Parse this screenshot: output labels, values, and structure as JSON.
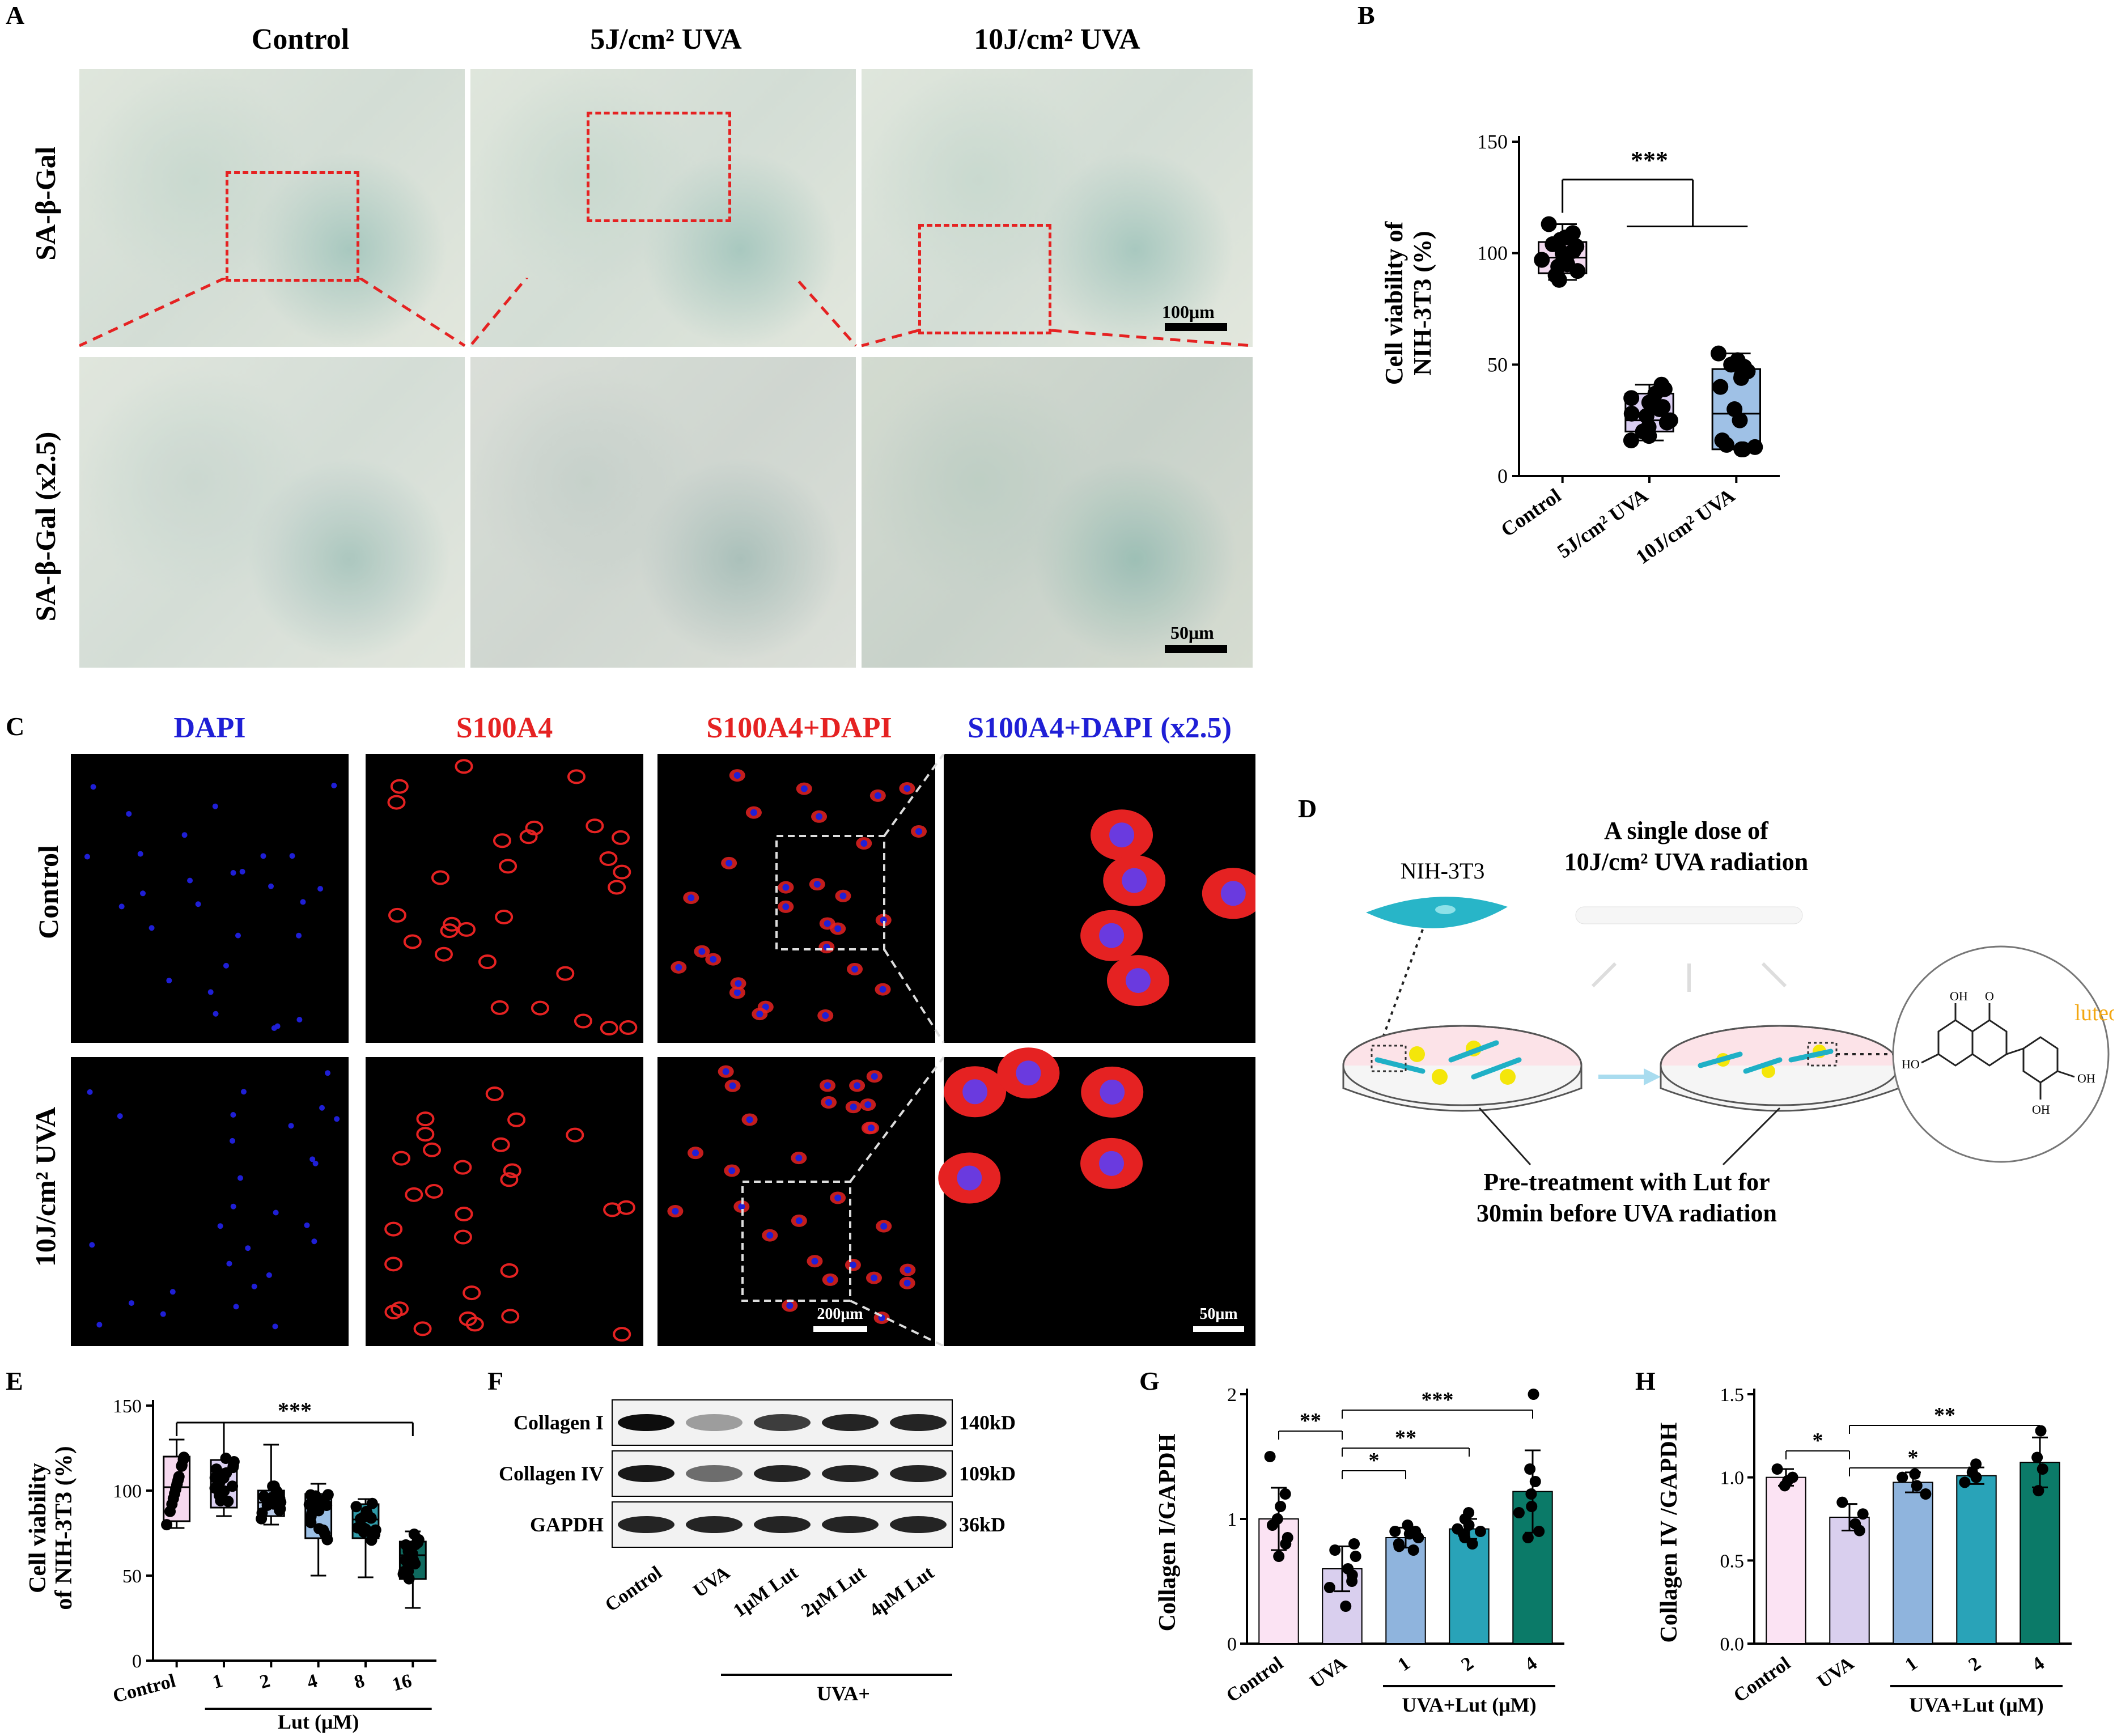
{
  "panel_labels": {
    "a": "A",
    "b": "B",
    "c": "C",
    "d": "D",
    "e": "E",
    "f": "F",
    "g": "G",
    "h": "H"
  },
  "panel_a": {
    "col_titles": [
      "Control",
      "5J/cm² UVA",
      "10J/cm² UVA"
    ],
    "row_labels": [
      "SA-β-Gal",
      "SA-β-Gal (x2.5)"
    ],
    "scale_top": "100μm",
    "scale_bottom": "50μm"
  },
  "panel_b": {
    "ylabel_line1": "Cell viability of",
    "ylabel_line2": "NIH-3T3 (%)",
    "significance": "***"
  },
  "panel_c": {
    "col_titles": [
      "DAPI",
      "S100A4",
      "S100A4+DAPI",
      "S100A4+DAPI (x2.5)"
    ],
    "row_labels": [
      "Control",
      "10J/cm² UVA"
    ],
    "scale_200": "200μm",
    "scale_50": "50μm",
    "colors": {
      "dapi": "#1f1fd6",
      "s100a4": "#e52222"
    }
  },
  "panel_d": {
    "cell_label": "NIH-3T3",
    "uva_line1": "A single dose of",
    "uva_line2": "10J/cm² UVA radiation",
    "compound": "luteolin",
    "pre_line1": "Pre-treatment with Lut for",
    "pre_line2": "30min before UVA radiation",
    "oh_labels": [
      "OH",
      "O",
      "HO",
      "OH",
      "OH"
    ]
  },
  "panel_e": {
    "ylabel_line1": "Cell viability",
    "ylabel_line2": "of NIH-3T3 (%)",
    "xlabel": "Lut (μM)",
    "significance": "***"
  },
  "panel_f": {
    "bands": [
      "Collagen I",
      "Collagen IV",
      "GAPDH"
    ],
    "sizes": [
      "140kD",
      "109kD",
      "36kD"
    ],
    "lanes": [
      "Control",
      "UVA",
      "1μM Lut",
      "2μM Lut",
      "4μM Lut"
    ],
    "group": "UVA+"
  },
  "panel_g": {
    "ylabel": "Collagen I/GAPDH",
    "xgroup": "UVA+Lut (μM)",
    "sig": [
      "**",
      "*",
      "**",
      "***"
    ]
  },
  "panel_h": {
    "ylabel": "Collagen IV /GAPDH",
    "xgroup": "UVA+Lut (μM)",
    "sig": [
      "*",
      "*",
      "**"
    ]
  },
  "chart_data": [
    {
      "id": "B",
      "type": "box",
      "categories": [
        "Control",
        "5J/cm² UVA",
        "10J/cm² UVA"
      ],
      "ylim": [
        0,
        150
      ],
      "yticks": [
        0,
        50,
        100,
        150
      ],
      "box_stats": [
        {
          "min": 88,
          "q1": 91,
          "median": 98,
          "q3": 105,
          "max": 113
        },
        {
          "min": 16,
          "q1": 20,
          "median": 25,
          "q3": 37,
          "max": 41
        },
        {
          "min": 12,
          "q1": 12,
          "median": 28,
          "q3": 48,
          "max": 55
        }
      ],
      "points": [
        [
          113,
          109,
          107,
          106,
          104,
          103,
          101,
          100,
          99,
          98,
          97,
          96,
          95,
          94,
          92,
          90,
          88
        ],
        [
          41,
          39,
          37,
          35,
          33,
          31,
          30,
          28,
          27,
          25,
          24,
          22,
          20,
          18,
          16
        ],
        [
          55,
          52,
          50,
          49,
          47,
          45,
          44,
          40,
          30,
          25,
          16,
          14,
          13,
          12,
          12
        ]
      ],
      "colors": [
        "#f2d9ef",
        "#d9cdf0",
        "#9fc1e6"
      ]
    },
    {
      "id": "E",
      "type": "box",
      "categories": [
        "Control",
        "1",
        "2",
        "4",
        "8",
        "16"
      ],
      "ylim": [
        0,
        150
      ],
      "yticks": [
        0,
        50,
        100,
        150
      ],
      "box_stats": [
        {
          "min": 78,
          "q1": 82,
          "median": 102,
          "q3": 120,
          "max": 130
        },
        {
          "min": 85,
          "q1": 90,
          "median": 102,
          "q3": 118,
          "max": 140
        },
        {
          "min": 80,
          "q1": 85,
          "median": 93,
          "q3": 100,
          "max": 127
        },
        {
          "min": 50,
          "q1": 72,
          "median": 90,
          "q3": 98,
          "max": 104
        },
        {
          "min": 49,
          "q1": 72,
          "median": 83,
          "q3": 92,
          "max": 95
        },
        {
          "min": 31,
          "q1": 48,
          "median": 62,
          "q3": 70,
          "max": 76
        }
      ],
      "colors": [
        "#f6d9ef",
        "#dcd1f2",
        "#b9cbe8",
        "#9bbfe5",
        "#2f9aa8",
        "#0f6a5f"
      ]
    },
    {
      "id": "G",
      "type": "bar",
      "ylabel": "Collagen I/GAPDH",
      "categories": [
        "Control",
        "UVA",
        "1",
        "2",
        "4"
      ],
      "values": [
        1.0,
        0.6,
        0.85,
        0.92,
        1.22
      ],
      "errors": [
        0.25,
        0.18,
        0.08,
        0.08,
        0.33
      ],
      "points": [
        [
          1.5,
          1.2,
          1.1,
          1.0,
          0.95,
          0.85,
          0.8,
          0.7
        ],
        [
          0.75,
          0.7,
          0.6,
          0.55,
          0.5,
          0.45,
          0.3,
          0.8
        ],
        [
          0.95,
          0.9,
          0.88,
          0.85,
          0.8,
          0.78,
          0.75,
          0.9
        ],
        [
          1.05,
          1.0,
          0.95,
          0.92,
          0.9,
          0.88,
          0.85,
          0.8
        ],
        [
          2.0,
          1.4,
          1.3,
          1.2,
          1.1,
          1.05,
          0.9,
          0.85
        ]
      ],
      "ylim": [
        0,
        2
      ],
      "yticks": [
        0,
        1,
        2
      ],
      "colors": [
        "#fbe3f3",
        "#d9cfee",
        "#8fb4dd",
        "#29a3b8",
        "#0b7a68"
      ]
    },
    {
      "id": "H",
      "type": "bar",
      "ylabel": "Collagen IV /GAPDH",
      "categories": [
        "Control",
        "UVA",
        "1",
        "2",
        "4"
      ],
      "values": [
        1.0,
        0.76,
        0.97,
        1.01,
        1.09
      ],
      "errors": [
        0.05,
        0.08,
        0.06,
        0.05,
        0.15
      ],
      "points": [
        [
          1.05,
          1.0,
          0.98,
          0.95
        ],
        [
          0.85,
          0.78,
          0.72,
          0.68
        ],
        [
          1.02,
          1.0,
          0.95,
          0.9
        ],
        [
          1.08,
          1.03,
          1.0,
          0.97
        ],
        [
          1.28,
          1.12,
          1.05,
          0.92
        ]
      ],
      "ylim": [
        0,
        1.5
      ],
      "yticks": [
        0.0,
        0.5,
        1.0,
        1.5
      ],
      "colors": [
        "#fbe3f3",
        "#d9cfee",
        "#8fb4dd",
        "#29a3b8",
        "#0b7a68"
      ]
    }
  ]
}
